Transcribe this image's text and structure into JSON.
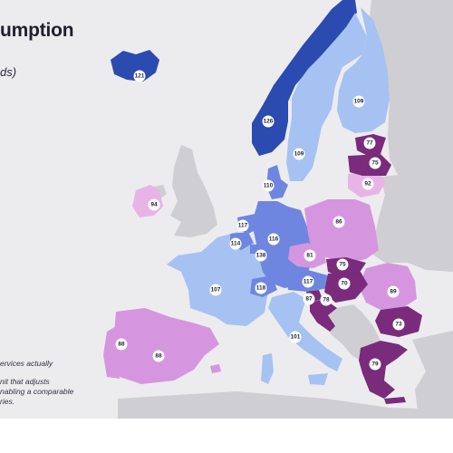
{
  "title": "umption",
  "subtitle": "ds)",
  "footnotes": [
    "ervices actually",
    "nit that adjusts",
    "nabling a comparable",
    "ries."
  ],
  "legend_colors": {
    "dark_blue": "#2b4bb0",
    "medium_blue": "#6f86e0",
    "light_blue": "#a6c2f2",
    "light_purple": "#d596df",
    "pale_pink": "#e8b4e8",
    "dark_purple": "#7a2b7c",
    "non_data_land": "#cfcfd3",
    "sea": "#ececee"
  },
  "regions": [
    {
      "id": "iceland",
      "value": "121"
    },
    {
      "id": "norway",
      "value": "126"
    },
    {
      "id": "sweden",
      "value": "109"
    },
    {
      "id": "finland",
      "value": "109"
    },
    {
      "id": "estonia",
      "value": "77"
    },
    {
      "id": "latvia",
      "value": "75"
    },
    {
      "id": "lithuania",
      "value": "92"
    },
    {
      "id": "ireland",
      "value": "94"
    },
    {
      "id": "denmark",
      "value": "110"
    },
    {
      "id": "netherlands",
      "value": "117"
    },
    {
      "id": "belgium",
      "value": "114"
    },
    {
      "id": "luxembourg",
      "value": "138"
    },
    {
      "id": "germany",
      "value": "116"
    },
    {
      "id": "poland",
      "value": "86"
    },
    {
      "id": "czechia",
      "value": "81"
    },
    {
      "id": "slovakia",
      "value": "75"
    },
    {
      "id": "hungary",
      "value": "70"
    },
    {
      "id": "romania",
      "value": "89"
    },
    {
      "id": "bulgaria",
      "value": "73"
    },
    {
      "id": "greece",
      "value": "79"
    },
    {
      "id": "france",
      "value": "107"
    },
    {
      "id": "switzerland",
      "value": "118"
    },
    {
      "id": "austria",
      "value": "117"
    },
    {
      "id": "slovenia",
      "value": "87"
    },
    {
      "id": "croatia",
      "value": "78"
    },
    {
      "id": "italy",
      "value": "101"
    },
    {
      "id": "spain",
      "value": "88"
    },
    {
      "id": "portugal",
      "value": "88"
    }
  ]
}
